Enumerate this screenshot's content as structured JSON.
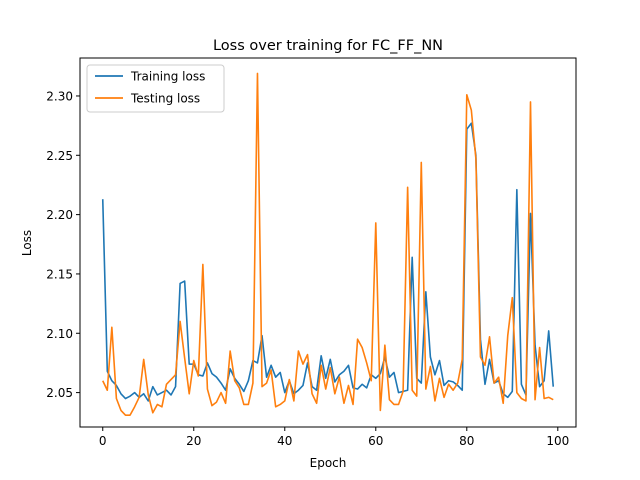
{
  "chart_data": {
    "type": "line",
    "title": "Loss over training for FC_FF_NN",
    "xlabel": "Epoch",
    "ylabel": "Loss",
    "xlim": [
      -5,
      104
    ],
    "ylim": [
      2.021,
      2.332
    ],
    "x_ticks": [
      0,
      20,
      40,
      60,
      80,
      100
    ],
    "y_ticks": [
      2.05,
      2.1,
      2.15,
      2.2,
      2.25,
      2.3
    ],
    "x_tick_labels": [
      "0",
      "20",
      "40",
      "60",
      "80",
      "100"
    ],
    "y_tick_labels": [
      "2.05",
      "2.10",
      "2.15",
      "2.20",
      "2.25",
      "2.30"
    ],
    "grid": false,
    "legend_position": "top-left",
    "x": [
      0,
      1,
      2,
      3,
      4,
      5,
      6,
      7,
      8,
      9,
      10,
      11,
      12,
      13,
      14,
      15,
      16,
      17,
      18,
      19,
      20,
      21,
      22,
      23,
      24,
      25,
      26,
      27,
      28,
      29,
      30,
      31,
      32,
      33,
      34,
      35,
      36,
      37,
      38,
      39,
      40,
      41,
      42,
      43,
      44,
      45,
      46,
      47,
      48,
      49,
      50,
      51,
      52,
      53,
      54,
      55,
      56,
      57,
      58,
      59,
      60,
      61,
      62,
      63,
      64,
      65,
      66,
      67,
      68,
      69,
      70,
      71,
      72,
      73,
      74,
      75,
      76,
      77,
      78,
      79,
      80,
      81,
      82,
      83,
      84,
      85,
      86,
      87,
      88,
      89,
      90,
      91,
      92,
      93,
      94,
      95,
      96,
      97,
      98,
      99
    ],
    "series": [
      {
        "name": "Training loss",
        "color": "#1f77b4",
        "values": [
          2.213,
          2.068,
          2.06,
          2.056,
          2.049,
          2.045,
          2.047,
          2.05,
          2.046,
          2.049,
          2.043,
          2.055,
          2.048,
          2.05,
          2.052,
          2.048,
          2.055,
          2.142,
          2.144,
          2.074,
          2.074,
          2.065,
          2.064,
          2.075,
          2.066,
          2.063,
          2.058,
          2.052,
          2.07,
          2.062,
          2.057,
          2.051,
          2.06,
          2.077,
          2.075,
          2.098,
          2.063,
          2.073,
          2.063,
          2.067,
          2.05,
          2.06,
          2.049,
          2.052,
          2.056,
          2.075,
          2.055,
          2.052,
          2.081,
          2.062,
          2.078,
          2.059,
          2.065,
          2.068,
          2.073,
          2.054,
          2.053,
          2.057,
          2.054,
          2.065,
          2.062,
          2.066,
          2.08,
          2.063,
          2.067,
          2.05,
          2.051,
          2.052,
          2.164,
          2.062,
          2.058,
          2.135,
          2.08,
          2.065,
          2.077,
          2.056,
          2.06,
          2.059,
          2.056,
          2.052,
          2.272,
          2.277,
          2.25,
          2.095,
          2.057,
          2.078,
          2.058,
          2.06,
          2.049,
          2.046,
          2.051,
          2.221,
          2.057,
          2.048,
          2.201,
          2.09,
          2.055,
          2.06,
          2.102,
          2.055
        ]
      },
      {
        "name": "Testing loss",
        "color": "#ff7f0e",
        "values": [
          2.06,
          2.052,
          2.105,
          2.045,
          2.035,
          2.031,
          2.031,
          2.038,
          2.046,
          2.078,
          2.048,
          2.033,
          2.04,
          2.038,
          2.057,
          2.061,
          2.065,
          2.11,
          2.079,
          2.049,
          2.077,
          2.064,
          2.158,
          2.053,
          2.039,
          2.042,
          2.05,
          2.041,
          2.085,
          2.06,
          2.054,
          2.04,
          2.04,
          2.058,
          2.319,
          2.055,
          2.058,
          2.069,
          2.038,
          2.04,
          2.043,
          2.061,
          2.043,
          2.085,
          2.074,
          2.082,
          2.049,
          2.041,
          2.073,
          2.053,
          2.071,
          2.049,
          2.063,
          2.041,
          2.056,
          2.04,
          2.095,
          2.088,
          2.075,
          2.06,
          2.193,
          2.035,
          2.09,
          2.044,
          2.04,
          2.04,
          2.051,
          2.223,
          2.052,
          2.047,
          2.244,
          2.053,
          2.072,
          2.043,
          2.062,
          2.046,
          2.057,
          2.052,
          2.058,
          2.078,
          2.301,
          2.288,
          2.247,
          2.08,
          2.073,
          2.097,
          2.058,
          2.063,
          2.041,
          2.098,
          2.13,
          2.05,
          2.045,
          2.043,
          2.295,
          2.044,
          2.088,
          2.045,
          2.046,
          2.044
        ]
      }
    ]
  }
}
